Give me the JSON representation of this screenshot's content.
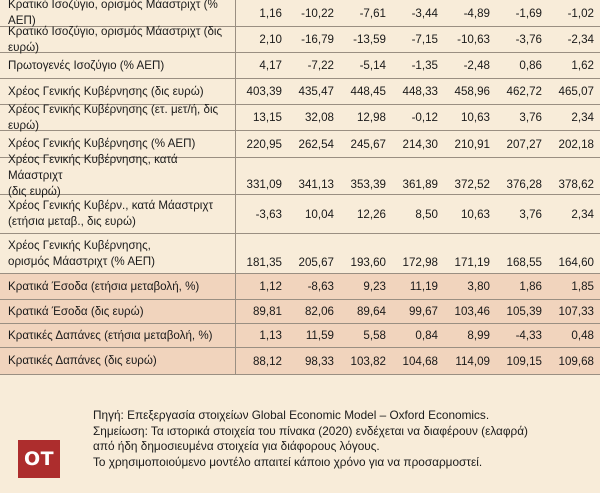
{
  "table": {
    "rows": [
      {
        "label": "Κρατικό Ισοζύγιο, ορισμός Μάαστριχτ (% ΑΕΠ)",
        "values": [
          "1,16",
          "-10,22",
          "-7,61",
          "-3,44",
          "-4,89",
          "-1,69",
          "-1,02"
        ]
      },
      {
        "label": "Κρατικό Ισοζύγιο, ορισμός Μάαστριχτ (δις ευρώ)",
        "values": [
          "2,10",
          "-16,79",
          "-13,59",
          "-7,15",
          "-10,63",
          "-3,76",
          "-2,34"
        ]
      },
      {
        "label": "Πρωτογενές Ισοζύγιο (% ΑΕΠ)",
        "values": [
          "4,17",
          "-7,22",
          "-5,14",
          "-1,35",
          "-2,48",
          "0,86",
          "1,62"
        ]
      },
      {
        "label": "Χρέος Γενικής Κυβέρνησης (δις ευρώ)",
        "values": [
          "403,39",
          "435,47",
          "448,45",
          "448,33",
          "458,96",
          "462,72",
          "465,07"
        ]
      },
      {
        "label": "Χρέος Γενικής Κυβέρνησης (ετ. μετ/ή, δις ευρώ)",
        "values": [
          "13,15",
          "32,08",
          "12,98",
          "-0,12",
          "10,63",
          "3,76",
          "2,34"
        ]
      },
      {
        "label": "Χρέος Γενικής Κυβέρνησης (% ΑΕΠ)",
        "values": [
          "220,95",
          "262,54",
          "245,67",
          "214,30",
          "210,91",
          "207,27",
          "202,18"
        ]
      },
      {
        "label_lines": [
          "Χρέος Γενικής Κυβέρνησης, κατά Μάαστριχτ",
          "(δις ευρώ)"
        ],
        "values": [
          "331,09",
          "341,13",
          "353,39",
          "361,89",
          "372,52",
          "376,28",
          "378,62"
        ]
      },
      {
        "label_lines": [
          "Χρέος Γενικής Κυβέρν., κατά Μάαστριχτ",
          "(ετήσια μεταβ., δις ευρώ)"
        ],
        "values": [
          "-3,63",
          "10,04",
          "12,26",
          "8,50",
          "10,63",
          "3,76",
          "2,34"
        ]
      },
      {
        "label_lines": [
          "Χρέος Γενικής Κυβέρνησης,",
          "ορισμός Μάαστριχτ (% ΑΕΠ)"
        ],
        "values": [
          "181,35",
          "205,67",
          "193,60",
          "172,98",
          "171,19",
          "168,55",
          "164,60"
        ]
      },
      {
        "label": "Κρατικά Έσοδα (ετήσια μεταβολή, %)",
        "values": [
          "1,12",
          "-8,63",
          "9,23",
          "11,19",
          "3,80",
          "1,86",
          "1,85"
        ]
      },
      {
        "label": "Κρατικά Έσοδα (δις ευρώ)",
        "values": [
          "89,81",
          "82,06",
          "89,64",
          "99,67",
          "103,46",
          "105,39",
          "107,33"
        ]
      },
      {
        "label": "Κρατικές Δαπάνες (ετήσια μεταβολή, %)",
        "values": [
          "1,13",
          "11,59",
          "5,58",
          "0,84",
          "8,99",
          "-4,33",
          "0,48"
        ]
      },
      {
        "label": "Κρατικές Δαπάνες (δις ευρώ)",
        "values": [
          "88,12",
          "98,33",
          "103,82",
          "104,68",
          "114,09",
          "109,15",
          "109,68"
        ]
      }
    ]
  },
  "footer": {
    "logo_text": "OT",
    "logo_color": "#ad2d2d",
    "source": "Πηγή: Επεξεργασία στοιχείων Global Economic Model – Oxford Economics.",
    "note_line1": "Σημείωση: Τα ιστορικά στοιχεία του πίνακα (2020) ενδέχεται να διαφέρουν (ελαφρά)",
    "note_line2": "από ήδη δημοσιευμένα στοιχεία για διάφορους λόγους.",
    "note_line3": "Το χρησιμοποιούμενο μοντέλο απαιτεί κάποιο χρόνο για να προσαρμοστεί."
  }
}
